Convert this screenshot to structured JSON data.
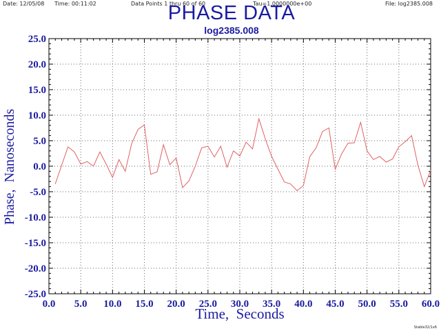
{
  "header": {
    "date": "Date: 12/05/08",
    "time": "Time: 00:11:02",
    "points": "Data Points 1 thru 60 of 60",
    "tau": "Tau=1.0000000e+00",
    "file": "File: log2385.008"
  },
  "footer": {
    "tag": "Stable32/1x6"
  },
  "chart_data": {
    "type": "line",
    "title": "PHASE DATA",
    "subtitle": "log2385.008",
    "xlabel": "Time,  Seconds",
    "ylabel": "Phase,  Nanoseconds",
    "xlim": [
      0,
      60
    ],
    "ylim": [
      -25,
      25
    ],
    "xticks": [
      0,
      5,
      10,
      15,
      20,
      25,
      30,
      35,
      40,
      45,
      50,
      55,
      60
    ],
    "yticks": [
      25,
      20,
      15,
      10,
      5,
      0,
      -5,
      -10,
      -15,
      -20,
      -25
    ],
    "xtick_labels": [
      "0.0",
      "5.0",
      "10.0",
      "15.0",
      "20.0",
      "25.0",
      "30.0",
      "35.0",
      "40.0",
      "45.0",
      "50.0",
      "55.0",
      "60.0"
    ],
    "ytick_labels": [
      "25.0",
      "20.0",
      "15.0",
      "10.0",
      "5.0",
      "0.0",
      "-5.0",
      "-10.0",
      "-15.0",
      "-20.0",
      "-25.0"
    ],
    "grid": true,
    "colors": {
      "line": "#e06060",
      "title": "#1a1aa0",
      "axis_label": "#1a1aa0"
    },
    "series": [
      {
        "x": [
          1,
          2,
          3,
          4,
          5,
          6,
          7,
          8,
          9,
          10,
          11,
          12,
          13,
          14,
          15,
          16,
          17,
          18,
          19,
          20,
          21,
          22,
          23,
          24,
          25,
          26,
          27,
          28,
          29,
          30,
          31,
          32,
          33,
          34,
          35,
          36,
          37,
          38,
          39,
          40,
          41,
          42,
          43,
          44,
          45,
          46,
          47,
          48,
          49,
          50,
          51,
          52,
          53,
          54,
          55,
          56,
          57,
          58,
          59,
          60
        ],
        "values": [
          -3.5,
          0.2,
          3.8,
          2.8,
          0.4,
          0.9,
          0.0,
          2.8,
          0.4,
          -2.2,
          1.3,
          -1.0,
          4.4,
          7.2,
          8.1,
          -1.6,
          -1.1,
          4.2,
          0.3,
          1.6,
          -4.2,
          -2.9,
          0.0,
          3.6,
          3.9,
          1.8,
          3.9,
          -0.2,
          3.0,
          2.0,
          4.7,
          3.4,
          9.3,
          5.4,
          1.9,
          -0.6,
          -3.1,
          -3.5,
          -4.8,
          -3.8,
          1.9,
          3.6,
          6.8,
          7.5,
          -0.6,
          2.4,
          4.5,
          4.6,
          8.6,
          3.0,
          1.3,
          1.9,
          0.8,
          1.4,
          3.8,
          4.8,
          6.0,
          0.2,
          -4.0,
          -0.8
        ]
      }
    ]
  }
}
